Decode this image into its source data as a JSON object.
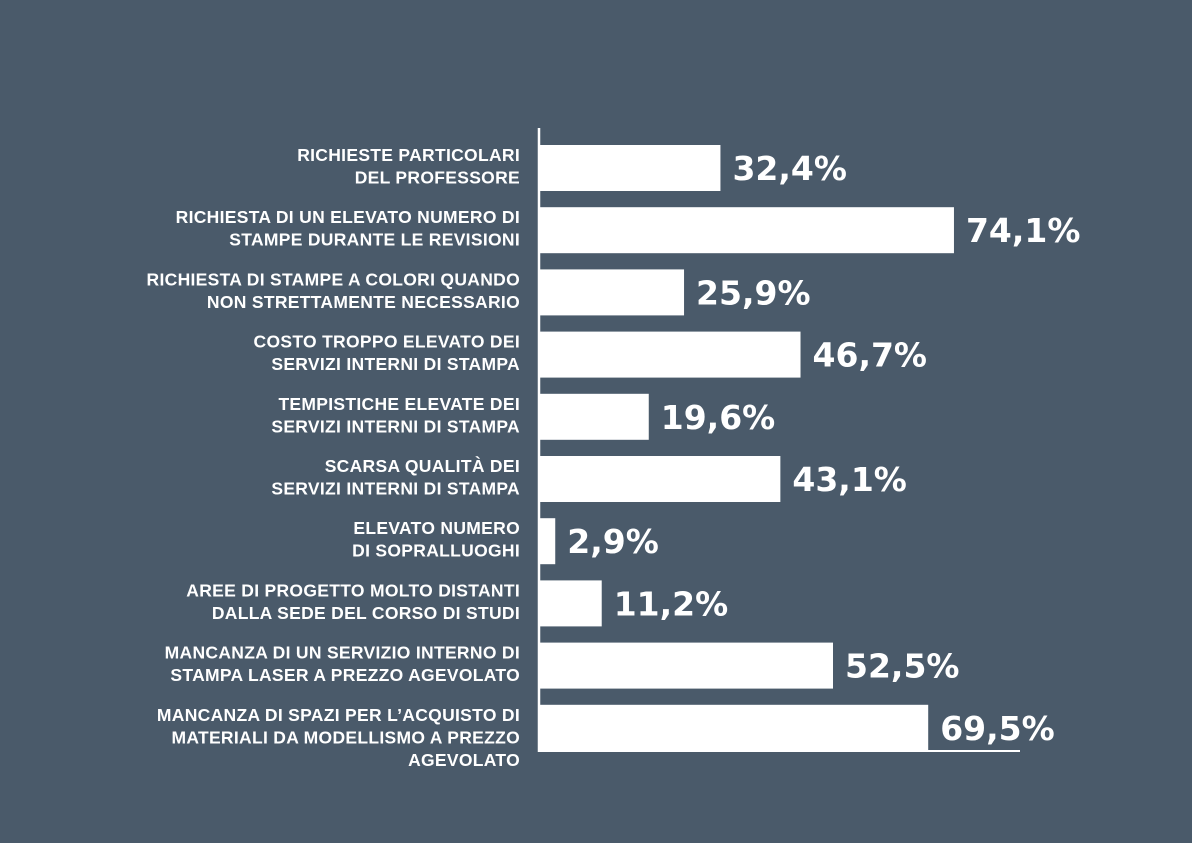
{
  "chart_data": {
    "type": "bar",
    "orientation": "horizontal",
    "categories": [
      [
        "RICHIESTE PARTICOLARI",
        "DEL PROFESSORE"
      ],
      [
        "RICHIESTA DI UN ELEVATO NUMERO DI",
        "STAMPE DURANTE LE REVISIONI"
      ],
      [
        "RICHIESTA DI STAMPE A COLORI QUANDO",
        "NON STRETTAMENTE NECESSARIO"
      ],
      [
        "COSTO TROPPO ELEVATO DEI",
        "SERVIZI INTERNI DI STAMPA"
      ],
      [
        "TEMPISTICHE ELEVATE DEI",
        "SERVIZI INTERNI DI STAMPA"
      ],
      [
        "SCARSA QUALITÀ DEI",
        "SERVIZI INTERNI DI STAMPA"
      ],
      [
        "ELEVATO NUMERO",
        "DI SOPRALLUOGHI"
      ],
      [
        "AREE DI PROGETTO MOLTO DISTANTI",
        "DALLA SEDE DEL CORSO DI STUDI"
      ],
      [
        "MANCANZA DI UN SERVIZIO INTERNO DI",
        "STAMPA LASER A PREZZO AGEVOLATO"
      ],
      [
        "MANCANZA DI SPAZI PER L’ACQUISTO DI",
        "MATERIALI DA MODELLISMO A PREZZO",
        "AGEVOLATO"
      ]
    ],
    "values": [
      32.4,
      74.1,
      25.9,
      46.7,
      19.6,
      43.1,
      2.9,
      11.2,
      52.5,
      69.5
    ],
    "value_labels": [
      "32,4%",
      "74,1%",
      "25,9%",
      "46,7%",
      "19,6%",
      "43,1%",
      "2,9%",
      "11,2%",
      "52,5%",
      "69,5%"
    ],
    "xlim": [
      0,
      100
    ],
    "grid": false,
    "legend": "none"
  },
  "colors": {
    "background": "#4a5a6a",
    "bar": "#ffffff",
    "text": "#ffffff",
    "axis": "#ffffff"
  }
}
